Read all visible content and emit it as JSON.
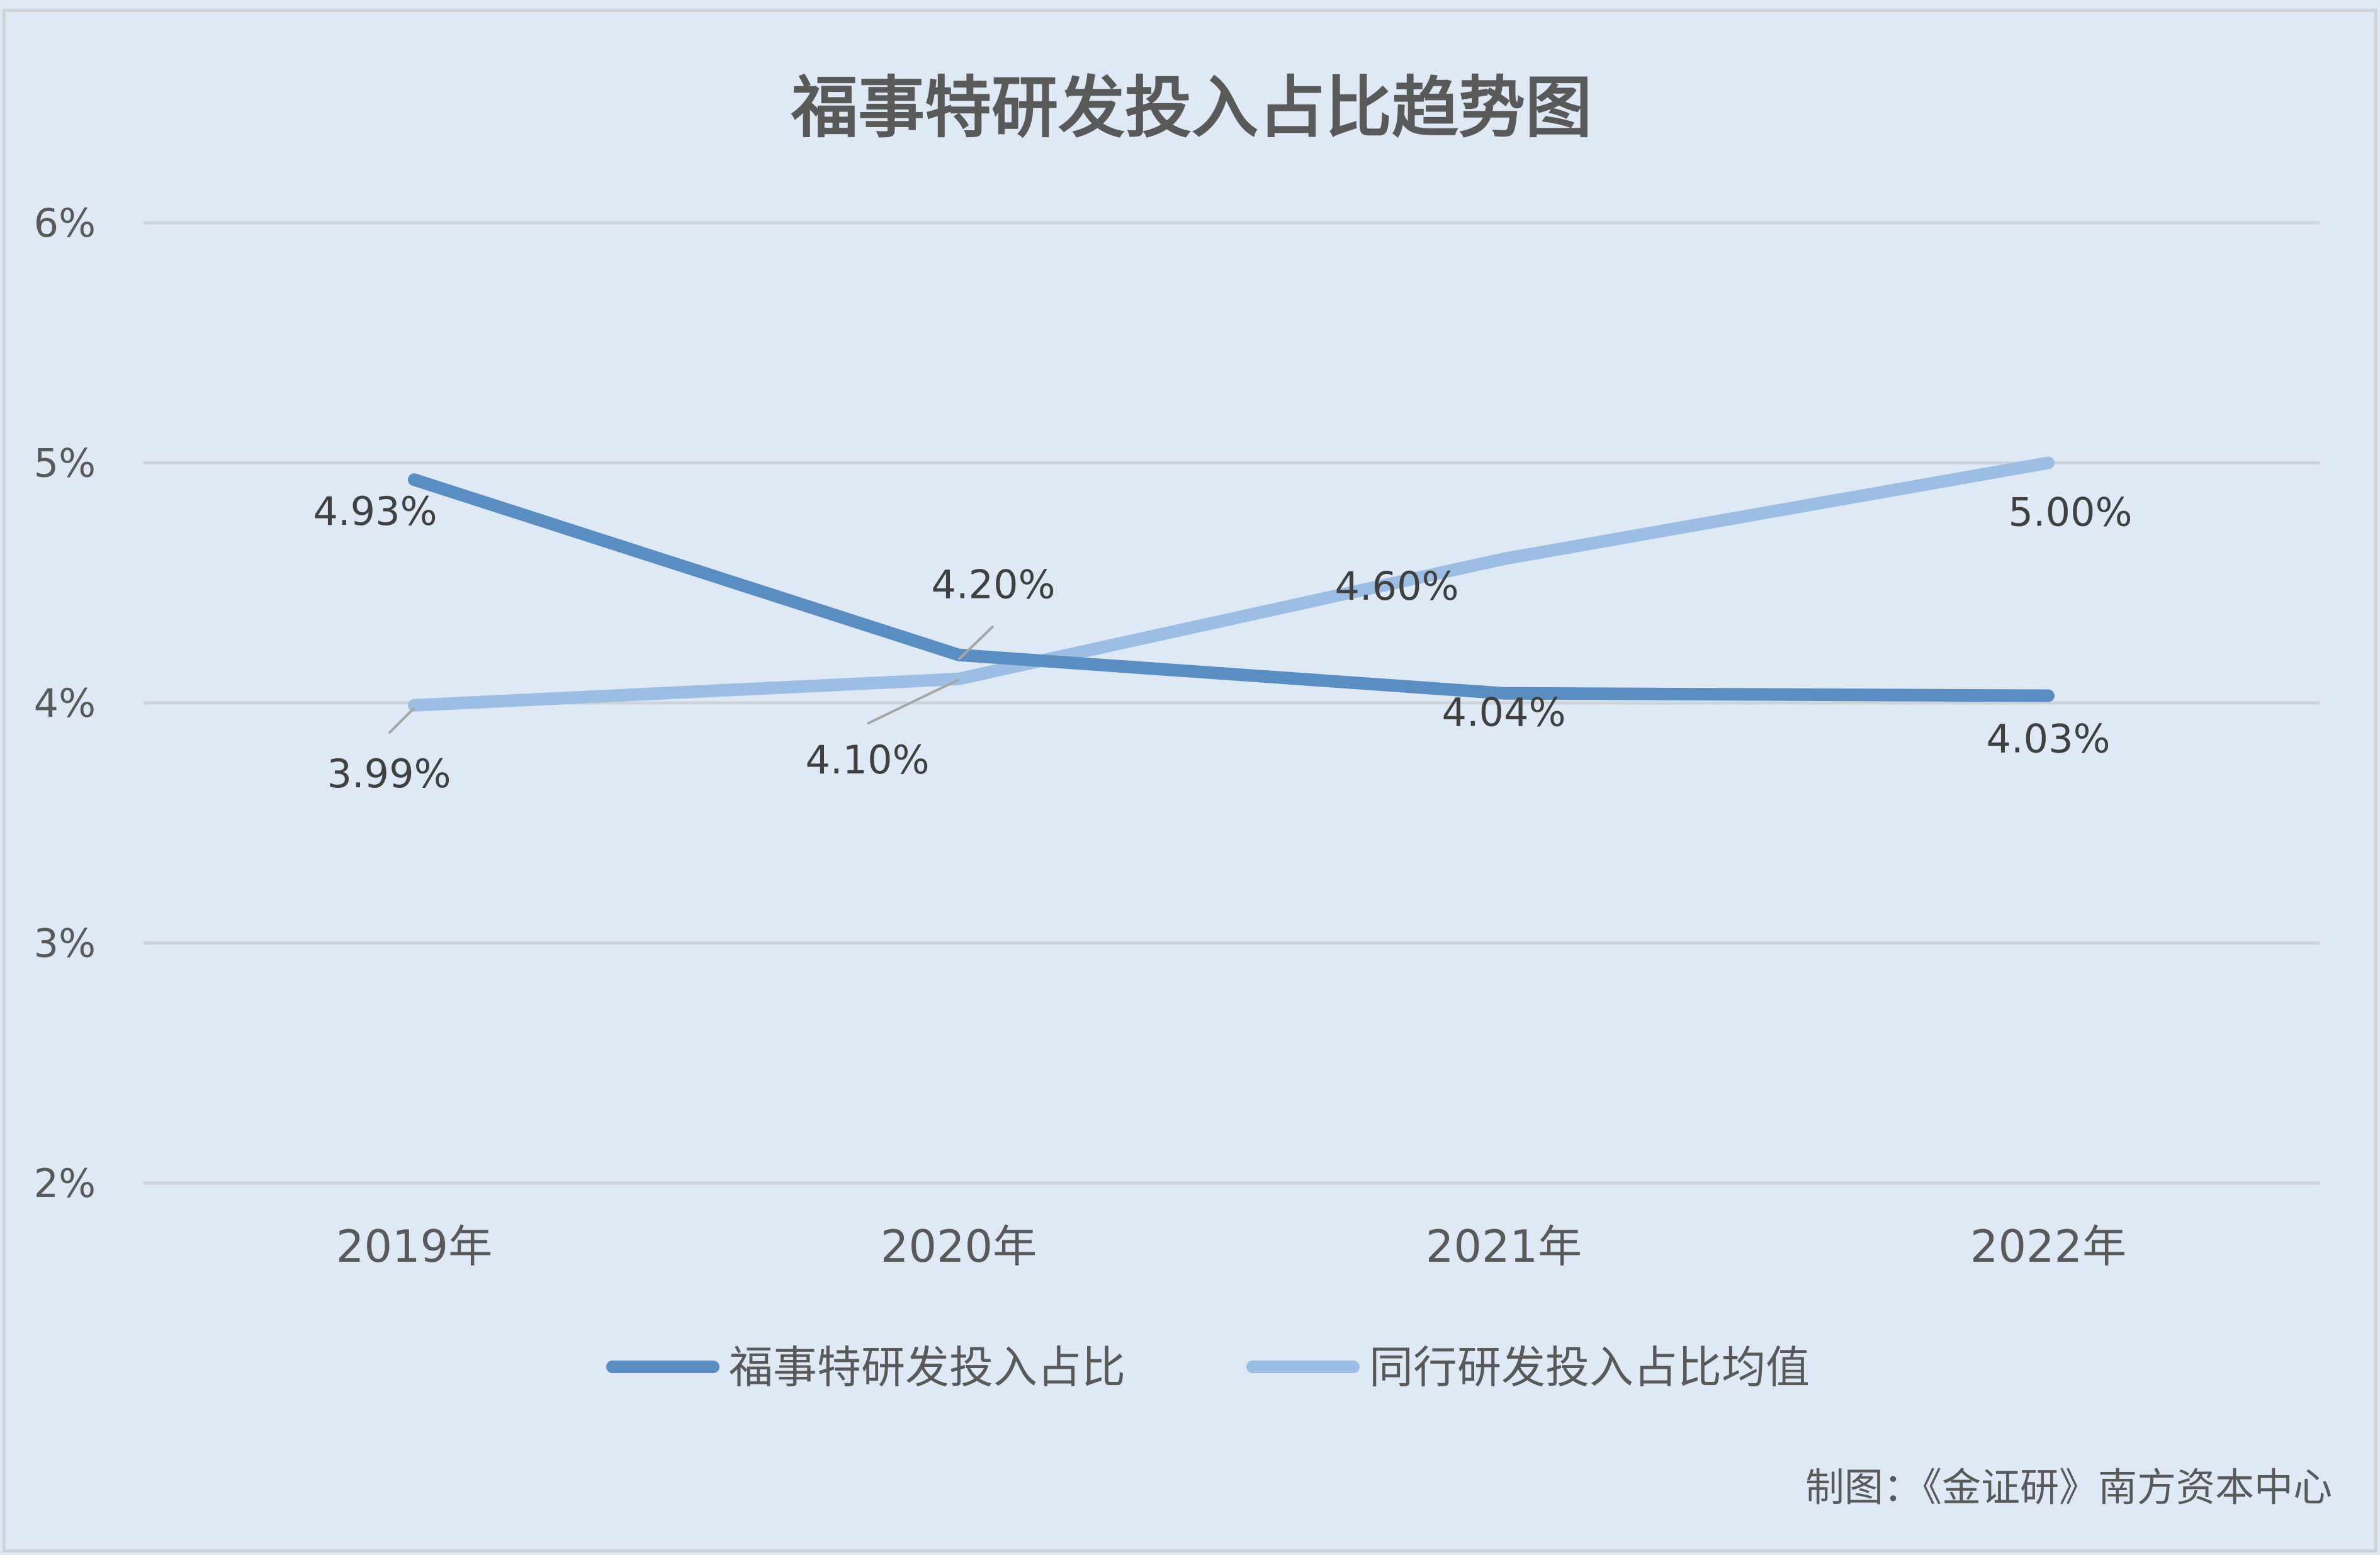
{
  "chart_data": {
    "type": "line",
    "title": "福事特研发投入占比趋势图",
    "categories": [
      "2019年",
      "2020年",
      "2021年",
      "2022年"
    ],
    "y_ticks": [
      "2%",
      "3%",
      "4%",
      "5%",
      "6%"
    ],
    "ylim": [
      2,
      6
    ],
    "y_unit": "%",
    "grid": true,
    "legend_placement": "bottom",
    "series": [
      {
        "name": "福事特研发投入占比",
        "values": [
          4.93,
          4.2,
          4.04,
          4.03
        ],
        "labels": [
          "4.93%",
          "4.20%",
          "4.04%",
          "4.03%"
        ],
        "color": "#5a8dc2"
      },
      {
        "name": "同行研发投入占比均值",
        "values": [
          3.99,
          4.1,
          4.6,
          5.0
        ],
        "labels": [
          "3.99%",
          "4.10%",
          "4.60%",
          "5.00%"
        ],
        "color": "#9cbde4"
      }
    ],
    "credit": "制图：《金证研》南方资本中心"
  }
}
